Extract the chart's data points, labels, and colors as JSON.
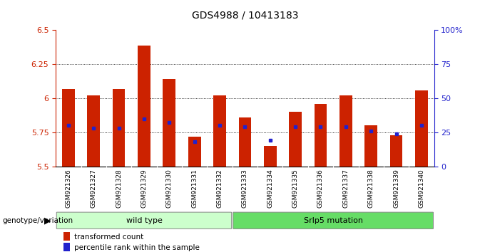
{
  "title": "GDS4988 / 10413183",
  "samples": [
    "GSM921326",
    "GSM921327",
    "GSM921328",
    "GSM921329",
    "GSM921330",
    "GSM921331",
    "GSM921332",
    "GSM921333",
    "GSM921334",
    "GSM921335",
    "GSM921336",
    "GSM921337",
    "GSM921338",
    "GSM921339",
    "GSM921340"
  ],
  "red_values": [
    6.07,
    6.02,
    6.07,
    6.39,
    6.14,
    5.72,
    6.02,
    5.86,
    5.65,
    5.9,
    5.96,
    6.02,
    5.8,
    5.73,
    6.06
  ],
  "blue_values": [
    30,
    28,
    28,
    35,
    32,
    18,
    30,
    29,
    19,
    29,
    29,
    29,
    26,
    24,
    30
  ],
  "y_min": 5.5,
  "y_max": 6.5,
  "y_ticks": [
    5.5,
    5.75,
    6.0,
    6.25,
    6.5
  ],
  "y_tick_labels": [
    "5.5",
    "5.75",
    "6",
    "6.25",
    "6.5"
  ],
  "y2_ticks_pct": [
    0,
    25,
    50,
    75,
    100
  ],
  "y2_labels": [
    "0",
    "25",
    "50",
    "75",
    "100%"
  ],
  "bar_color": "#cc2200",
  "blue_color": "#2222cc",
  "wild_type_count": 7,
  "mutation_count": 8,
  "wild_type_label": "wild type",
  "mutation_label": "Srlp5 mutation",
  "wild_type_color": "#ccffcc",
  "mutation_color": "#66dd66",
  "group_label": "genotype/variation",
  "legend_red": "transformed count",
  "legend_blue": "percentile rank within the sample",
  "bar_width": 0.5,
  "grid_lines": [
    5.75,
    6.0,
    6.25
  ]
}
